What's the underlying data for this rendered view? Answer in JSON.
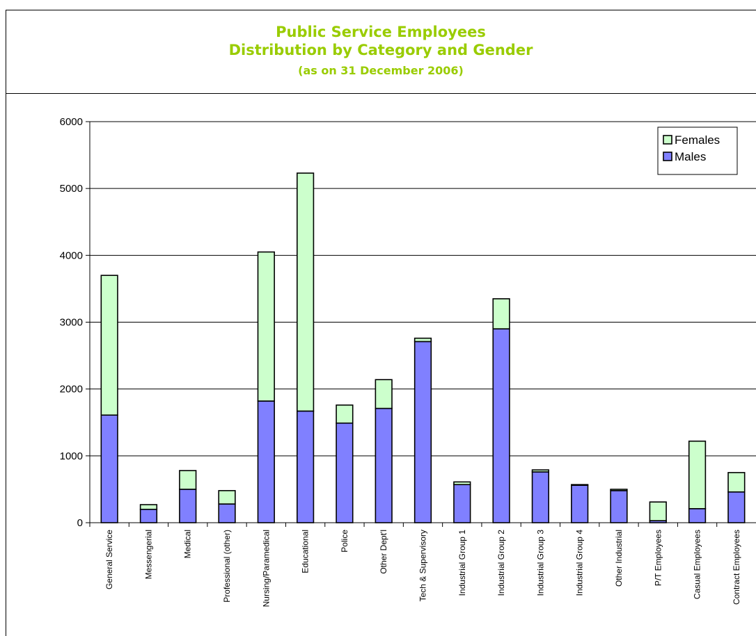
{
  "chart_data": {
    "type": "bar",
    "stacked": true,
    "title": "Public Service Employees",
    "subtitle": "Distribution by Category and Gender",
    "note": "(as on 31 December 2006)",
    "ylim": [
      0,
      6000
    ],
    "yticks": [
      0,
      1000,
      2000,
      3000,
      4000,
      5000,
      6000
    ],
    "grid": true,
    "legend_position": "top-right",
    "categories": [
      "General Service",
      "Messengerial",
      "Medical",
      "Professional (other)",
      "Nursing/Paramedical",
      "Educational",
      "Police",
      "Other Dept'l",
      "Tech & Supervisory",
      "Industrial Group 1",
      "Industrial Group 2",
      "Industrial Group 3",
      "Industrial Group 4",
      "Other Industrial",
      "P/T Employees",
      "Casual Employees",
      "Contract Employees"
    ],
    "series": [
      {
        "name": "Males",
        "color": "#8080ff",
        "values": [
          1610,
          200,
          500,
          280,
          1820,
          1670,
          1490,
          1710,
          2710,
          570,
          2900,
          760,
          560,
          480,
          30,
          210,
          460
        ]
      },
      {
        "name": "Females",
        "color": "#ccffcc",
        "values": [
          2090,
          70,
          280,
          200,
          2230,
          3560,
          270,
          430,
          50,
          40,
          450,
          30,
          10,
          20,
          280,
          1010,
          290
        ]
      }
    ],
    "legend": [
      "Females",
      "Males"
    ]
  }
}
